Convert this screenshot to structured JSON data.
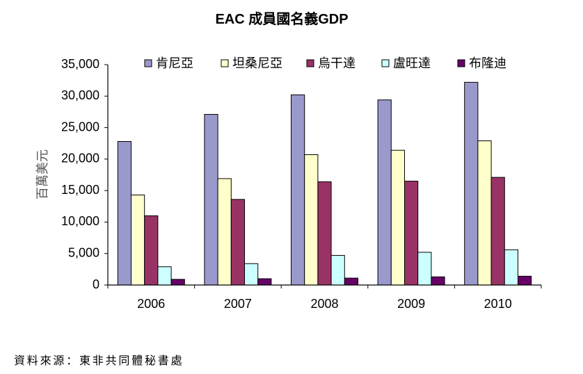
{
  "chart_data": {
    "type": "bar",
    "title": "EAC 成員國名義GDP",
    "xlabel": "",
    "ylabel": "百萬美元",
    "categories": [
      "2006",
      "2007",
      "2008",
      "2009",
      "2010"
    ],
    "series": [
      {
        "name": "肯尼亞",
        "color": "#9999CC",
        "values": [
          22800,
          27100,
          30200,
          29400,
          32200
        ]
      },
      {
        "name": "坦桑尼亞",
        "color": "#FFFFCC",
        "values": [
          14300,
          16900,
          20700,
          21400,
          22900
        ]
      },
      {
        "name": "烏干達",
        "color": "#993366",
        "values": [
          11000,
          13600,
          16400,
          16500,
          17100
        ]
      },
      {
        "name": "盧旺達",
        "color": "#CCFFFF",
        "values": [
          2900,
          3400,
          4700,
          5200,
          5600
        ]
      },
      {
        "name": "布隆迪",
        "color": "#660066",
        "values": [
          900,
          1000,
          1100,
          1300,
          1400
        ]
      }
    ],
    "ylim": [
      0,
      35000
    ],
    "yticks": [
      0,
      5000,
      10000,
      15000,
      20000,
      25000,
      30000,
      35000
    ],
    "ytick_labels": [
      "0",
      "5,000",
      "10,000",
      "15,000",
      "20,000",
      "25,000",
      "30,000",
      "35,000"
    ],
    "grid": false,
    "legend": "top"
  },
  "source": "資料來源：東非共同體秘書處"
}
